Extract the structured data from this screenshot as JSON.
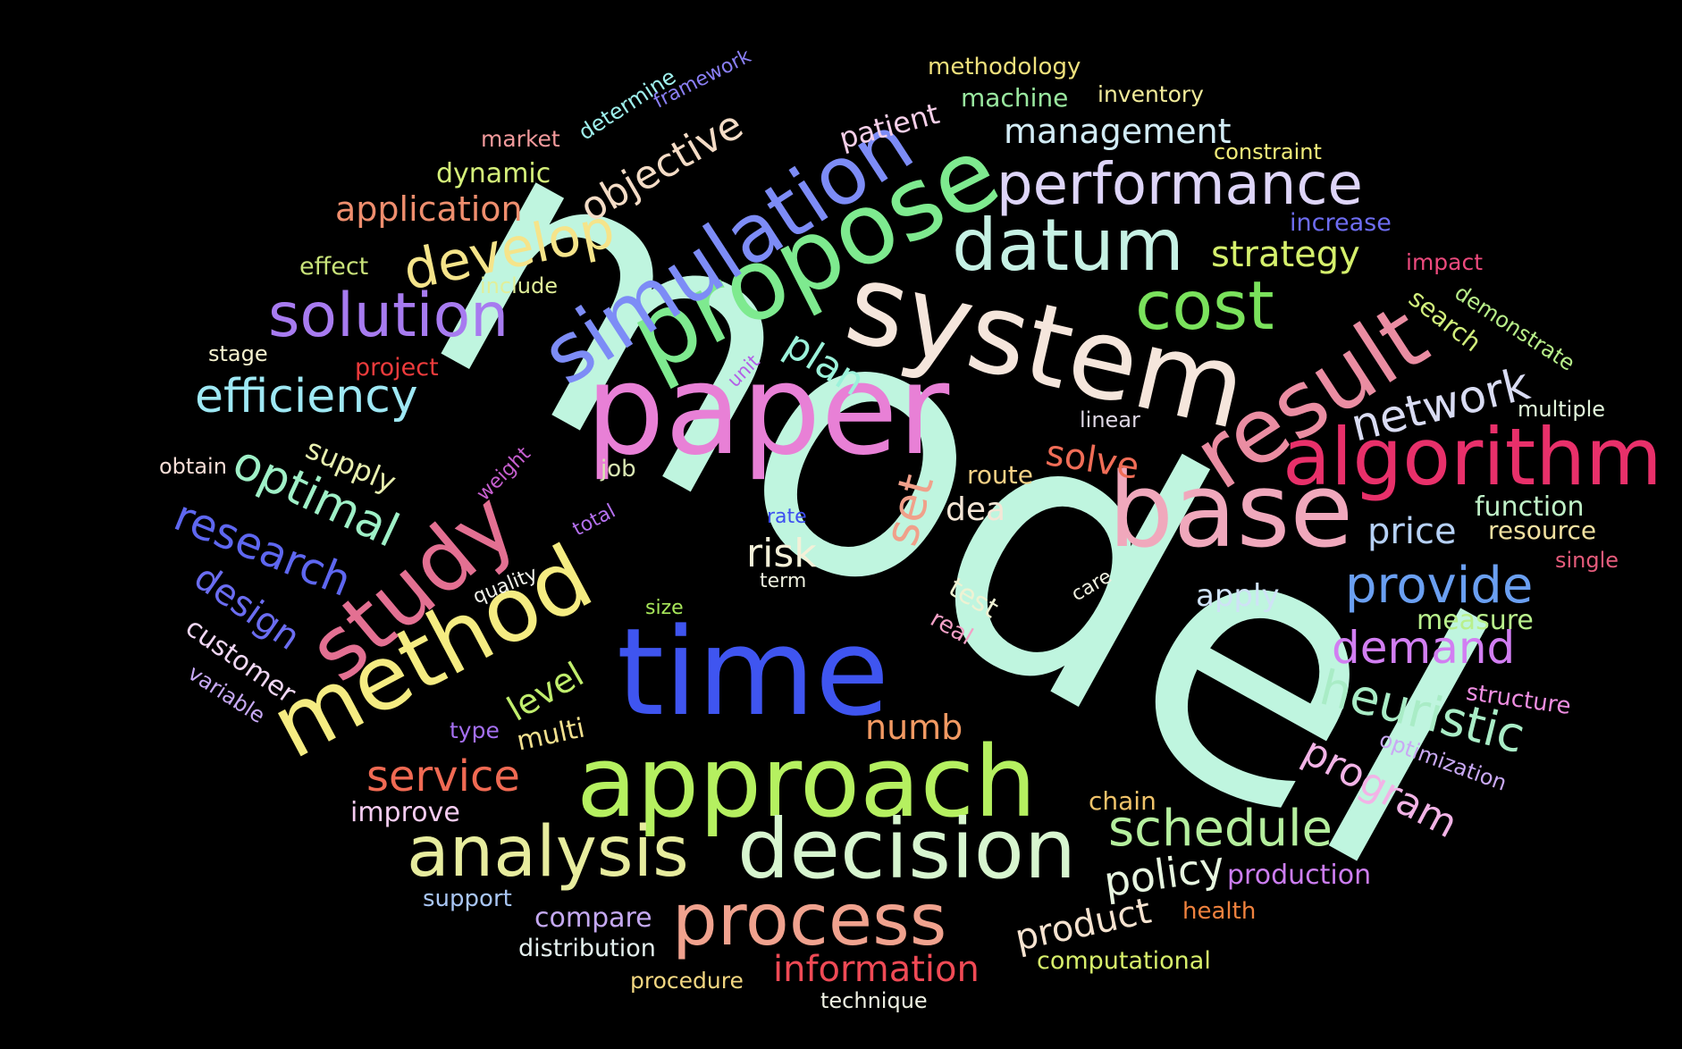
{
  "words": [
    {
      "text": "model",
      "weight": 1.0,
      "color": "#bff5df"
    },
    {
      "text": "paper",
      "weight": 0.47,
      "color": "#e880d6"
    },
    {
      "text": "system",
      "weight": 0.45,
      "color": "#f5e6dc"
    },
    {
      "text": "time",
      "weight": 0.4,
      "color": "#3f55f0"
    },
    {
      "text": "approach",
      "weight": 0.36,
      "color": "#b5f060"
    },
    {
      "text": "propose",
      "weight": 0.35,
      "color": "#7eea8f"
    },
    {
      "text": "base",
      "weight": 0.36,
      "color": "#f0a8bc"
    },
    {
      "text": "simulation",
      "weight": 0.33,
      "color": "#7d8cf6"
    },
    {
      "text": "result",
      "weight": 0.33,
      "color": "#ea8da2"
    },
    {
      "text": "method",
      "weight": 0.32,
      "color": "#f5ec82"
    },
    {
      "text": "study",
      "weight": 0.31,
      "color": "#e37092"
    },
    {
      "text": "decision",
      "weight": 0.3,
      "color": "#d7f5cf"
    },
    {
      "text": "algorithm",
      "weight": 0.29,
      "color": "#e8306a"
    },
    {
      "text": "analysis",
      "weight": 0.26,
      "color": "#e7ec9e"
    },
    {
      "text": "process",
      "weight": 0.26,
      "color": "#f0a28e"
    },
    {
      "text": "datum",
      "weight": 0.24,
      "color": "#c6f1e4"
    },
    {
      "text": "cost",
      "weight": 0.24,
      "color": "#7ae25c"
    },
    {
      "text": "solution",
      "weight": 0.21,
      "color": "#a77bf0"
    },
    {
      "text": "performance",
      "weight": 0.21,
      "color": "#ded5f8"
    },
    {
      "text": "develop",
      "weight": 0.2,
      "color": "#f5e48a"
    },
    {
      "text": "schedule",
      "weight": 0.19,
      "color": "#b5ef9e"
    },
    {
      "text": "efficiency",
      "weight": 0.17,
      "color": "#9ee8f4"
    },
    {
      "text": "optimal",
      "weight": 0.16,
      "color": "#9ff0c7"
    },
    {
      "text": "heuristic",
      "weight": 0.17,
      "color": "#a9ecc6"
    },
    {
      "text": "provide",
      "weight": 0.18,
      "color": "#6a9ff1"
    },
    {
      "text": "research",
      "weight": 0.16,
      "color": "#5e67f0"
    },
    {
      "text": "network",
      "weight": 0.16,
      "color": "#d9dcf3"
    },
    {
      "text": "demand",
      "weight": 0.16,
      "color": "#d27ef2"
    },
    {
      "text": "service",
      "weight": 0.15,
      "color": "#f06a53"
    },
    {
      "text": "objective",
      "weight": 0.14,
      "color": "#f4dcc6"
    },
    {
      "text": "program",
      "weight": 0.14,
      "color": "#f2b3e6"
    },
    {
      "text": "set",
      "weight": 0.15,
      "color": "#f0a08a"
    },
    {
      "text": "product",
      "weight": 0.13,
      "color": "#f6e3d0"
    },
    {
      "text": "information",
      "weight": 0.12,
      "color": "#ef4a55"
    },
    {
      "text": "management",
      "weight": 0.12,
      "color": "#d2ecf6"
    },
    {
      "text": "plan",
      "weight": 0.12,
      "color": "#9bf2da"
    },
    {
      "text": "policy",
      "weight": 0.13,
      "color": "#e7f6e0"
    },
    {
      "text": "strategy",
      "weight": 0.12,
      "color": "#d5f06c"
    },
    {
      "text": "solve",
      "weight": 0.12,
      "color": "#f06d57"
    },
    {
      "text": "price",
      "weight": 0.12,
      "color": "#b6d1f6"
    },
    {
      "text": "risk",
      "weight": 0.13,
      "color": "#f4f0d8"
    },
    {
      "text": "application",
      "weight": 0.11,
      "color": "#ef8e6e"
    },
    {
      "text": "design",
      "weight": 0.11,
      "color": "#6b6df1"
    },
    {
      "text": "level",
      "weight": 0.11,
      "color": "#c1ee6d"
    },
    {
      "text": "numb",
      "weight": 0.11,
      "color": "#f29a63"
    },
    {
      "text": "dea",
      "weight": 0.11,
      "color": "#f5e6d6"
    },
    {
      "text": "supply",
      "weight": 0.1,
      "color": "#e9f0b0"
    },
    {
      "text": "customer",
      "weight": 0.09,
      "color": "#f1d7f4"
    },
    {
      "text": "multi",
      "weight": 0.09,
      "color": "#f2e08e"
    },
    {
      "text": "apply",
      "weight": 0.1,
      "color": "#cfe2f6"
    },
    {
      "text": "measure",
      "weight": 0.09,
      "color": "#b9f08c"
    },
    {
      "text": "improve",
      "weight": 0.09,
      "color": "#f5ccf1"
    },
    {
      "text": "compare",
      "weight": 0.08,
      "color": "#c5a9f2"
    },
    {
      "text": "distribution",
      "weight": 0.08,
      "color": "#e4f0ee"
    },
    {
      "text": "computational",
      "weight": 0.08,
      "color": "#d7ef6b"
    },
    {
      "text": "production",
      "weight": 0.08,
      "color": "#cd7ef2"
    },
    {
      "text": "function",
      "weight": 0.08,
      "color": "#bff0c7"
    },
    {
      "text": "chain",
      "weight": 0.08,
      "color": "#f0c36a"
    },
    {
      "text": "test",
      "weight": 0.08,
      "color": "#eef2d3"
    },
    {
      "text": "machine",
      "weight": 0.08,
      "color": "#9ae8a0"
    },
    {
      "text": "patient",
      "weight": 0.08,
      "color": "#f5cfe8"
    },
    {
      "text": "dynamic",
      "weight": 0.08,
      "color": "#d5f07a"
    },
    {
      "text": "resource",
      "weight": 0.07,
      "color": "#f0e0a0"
    },
    {
      "text": "route",
      "weight": 0.07,
      "color": "#f5d186"
    },
    {
      "text": "job",
      "weight": 0.07,
      "color": "#d9e7b3"
    },
    {
      "text": "search",
      "weight": 0.08,
      "color": "#d2ef7c"
    },
    {
      "text": "structure",
      "weight": 0.07,
      "color": "#f08ee2"
    },
    {
      "text": "optimization",
      "weight": 0.07,
      "color": "#c9a9f4"
    },
    {
      "text": "health",
      "weight": 0.07,
      "color": "#f0823e"
    },
    {
      "text": "support",
      "weight": 0.07,
      "color": "#a9c6f4"
    },
    {
      "text": "procedure",
      "weight": 0.07,
      "color": "#f3d781"
    },
    {
      "text": "technique",
      "weight": 0.07,
      "color": "#eef0e2"
    },
    {
      "text": "effect",
      "weight": 0.07,
      "color": "#c9e37a"
    },
    {
      "text": "impact",
      "weight": 0.07,
      "color": "#ec4a7d"
    },
    {
      "text": "increase",
      "weight": 0.07,
      "color": "#6e6df2"
    },
    {
      "text": "methodology",
      "weight": 0.07,
      "color": "#efe07c"
    },
    {
      "text": "inventory",
      "weight": 0.07,
      "color": "#f2eb9a"
    },
    {
      "text": "constraint",
      "weight": 0.07,
      "color": "#f1ec7a"
    },
    {
      "text": "market",
      "weight": 0.07,
      "color": "#f39a9c"
    },
    {
      "text": "determine",
      "weight": 0.07,
      "color": "#9ff0ed"
    },
    {
      "text": "framework",
      "weight": 0.06,
      "color": "#8a7ff5"
    },
    {
      "text": "project",
      "weight": 0.07,
      "color": "#ef3b3c"
    },
    {
      "text": "obtain",
      "weight": 0.07,
      "color": "#f6ddd6"
    },
    {
      "text": "variable",
      "weight": 0.07,
      "color": "#c7a9f5"
    },
    {
      "text": "quality",
      "weight": 0.06,
      "color": "#f0f1ea"
    },
    {
      "text": "total",
      "weight": 0.06,
      "color": "#b470ee"
    },
    {
      "text": "weight",
      "weight": 0.06,
      "color": "#c65fcf"
    },
    {
      "text": "rate",
      "weight": 0.06,
      "color": "#3d4ff0"
    },
    {
      "text": "term",
      "weight": 0.06,
      "color": "#eef0de"
    },
    {
      "text": "size",
      "weight": 0.06,
      "color": "#a7e65a"
    },
    {
      "text": "real",
      "weight": 0.06,
      "color": "#f3a0c6"
    },
    {
      "text": "care",
      "weight": 0.06,
      "color": "#eeefdf"
    },
    {
      "text": "linear",
      "weight": 0.06,
      "color": "#ddd6e3"
    },
    {
      "text": "unit",
      "weight": 0.06,
      "color": "#b35fe6"
    },
    {
      "text": "stage",
      "weight": 0.06,
      "color": "#f5f1ce"
    },
    {
      "text": "include",
      "weight": 0.06,
      "color": "#e1ef9a"
    },
    {
      "text": "type",
      "weight": 0.06,
      "color": "#a46ff0"
    },
    {
      "text": "demonstrate",
      "weight": 0.06,
      "color": "#b8ef8a"
    },
    {
      "text": "multiple",
      "weight": 0.06,
      "color": "#e2f6db"
    },
    {
      "text": "single",
      "weight": 0.06,
      "color": "#e55b7b"
    }
  ]
}
